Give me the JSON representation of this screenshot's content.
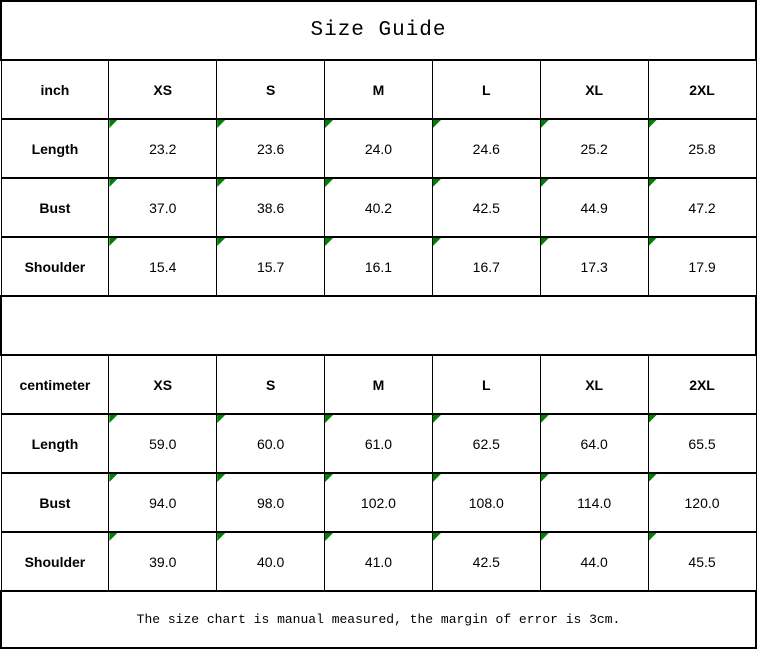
{
  "title": "Size Guide",
  "sizes": [
    "XS",
    "S",
    "M",
    "L",
    "XL",
    "2XL"
  ],
  "tables": [
    {
      "unit_label": "inch",
      "rows": [
        {
          "label": "Length",
          "values": [
            "23.2",
            "23.6",
            "24.0",
            "24.6",
            "25.2",
            "25.8"
          ]
        },
        {
          "label": "Bust",
          "values": [
            "37.0",
            "38.6",
            "40.2",
            "42.5",
            "44.9",
            "47.2"
          ]
        },
        {
          "label": "Shoulder",
          "values": [
            "15.4",
            "15.7",
            "16.1",
            "16.7",
            "17.3",
            "17.9"
          ]
        }
      ]
    },
    {
      "unit_label": "centimeter",
      "rows": [
        {
          "label": "Length",
          "values": [
            "59.0",
            "60.0",
            "61.0",
            "62.5",
            "64.0",
            "65.5"
          ]
        },
        {
          "label": "Bust",
          "values": [
            "94.0",
            "98.0",
            "102.0",
            "108.0",
            "114.0",
            "120.0"
          ]
        },
        {
          "label": "Shoulder",
          "values": [
            "39.0",
            "40.0",
            "41.0",
            "42.5",
            "44.0",
            "45.5"
          ]
        }
      ]
    }
  ],
  "footer_note": "The size chart is manual measured, the margin of error is 3cm.",
  "colors": {
    "corner_marker_green": "#008000",
    "border_black": "#000000"
  }
}
